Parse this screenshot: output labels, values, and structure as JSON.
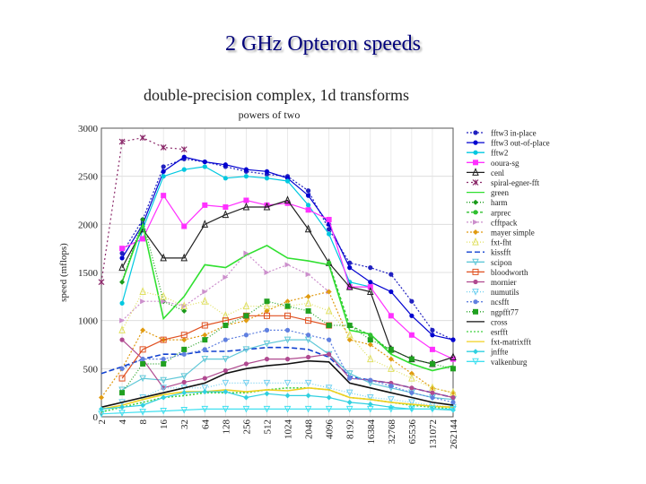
{
  "slide": {
    "title": "2 GHz Opteron speeds"
  },
  "chart_data": {
    "type": "line",
    "title": "double-precision complex, 1d transforms",
    "subtitle": "powers of two",
    "ylabel": "speed (mflops)",
    "xlabel": "",
    "ylim": [
      0,
      3000
    ],
    "yticks": [
      0,
      500,
      1000,
      1500,
      2000,
      2500,
      3000
    ],
    "grid": true,
    "legend_position": "right",
    "categories": [
      "2",
      "4",
      "8",
      "16",
      "32",
      "64",
      "128",
      "256",
      "512",
      "1024",
      "2048",
      "4096",
      "8192",
      "16384",
      "32768",
      "65536",
      "131072",
      "262144"
    ],
    "series": [
      {
        "name": "fftw3 in-place",
        "color": "#2020c0",
        "marker": "dot",
        "dash": "2,2",
        "values": [
          null,
          1700,
          2050,
          2600,
          2680,
          2650,
          2600,
          2550,
          2520,
          2500,
          2350,
          1950,
          1600,
          1550,
          1480,
          1200,
          900,
          800
        ]
      },
      {
        "name": "fftw3 out-of-place",
        "color": "#0000d0",
        "marker": "circle",
        "dash": "",
        "values": [
          null,
          1650,
          2000,
          2550,
          2700,
          2650,
          2620,
          2570,
          2550,
          2480,
          2300,
          2000,
          1550,
          1400,
          1300,
          1050,
          850,
          800
        ]
      },
      {
        "name": "fftw2",
        "color": "#00c8e0",
        "marker": "circle",
        "dash": "",
        "values": [
          null,
          1180,
          1950,
          2500,
          2570,
          2600,
          2480,
          2500,
          2480,
          2450,
          2200,
          1900,
          1400,
          1350,
          null,
          null,
          null,
          null
        ]
      },
      {
        "name": "ooura-sg",
        "color": "#ff30ff",
        "marker": "square",
        "dash": "",
        "values": [
          null,
          1750,
          1850,
          2300,
          1980,
          2200,
          2180,
          2250,
          2200,
          2220,
          2150,
          2050,
          1350,
          1350,
          1050,
          850,
          700,
          600
        ]
      },
      {
        "name": "cenl",
        "color": "#202020",
        "marker": "triangle",
        "dash": "",
        "values": [
          null,
          1550,
          1950,
          1650,
          1650,
          2000,
          2100,
          2180,
          2180,
          2250,
          1950,
          1600,
          1350,
          1300,
          700,
          600,
          550,
          620
        ]
      },
      {
        "name": "spiral-egner-fft",
        "color": "#8b2a6a",
        "marker": "star",
        "dash": "2,3",
        "values": [
          1400,
          2860,
          2900,
          2800,
          2780,
          null,
          null,
          null,
          null,
          null,
          null,
          null,
          null,
          null,
          null,
          null,
          null,
          null
        ]
      },
      {
        "name": "green",
        "color": "#30e030",
        "marker": "none",
        "dash": "",
        "values": [
          null,
          1400,
          2000,
          1020,
          1250,
          1580,
          1550,
          1680,
          1780,
          1650,
          1620,
          1580,
          900,
          860,
          650,
          550,
          480,
          530
        ]
      },
      {
        "name": "harm",
        "color": "#1a9a1a",
        "marker": "diamond",
        "dash": "1,2",
        "values": [
          null,
          1400,
          2050,
          1200,
          1100,
          null,
          null,
          null,
          null,
          null,
          null,
          null,
          null,
          null,
          null,
          null,
          null,
          null
        ]
      },
      {
        "name": "arprec",
        "color": "#30c030",
        "marker": "circle",
        "dash": "3,2",
        "values": [
          null,
          null,
          null,
          null,
          null,
          null,
          null,
          null,
          null,
          null,
          null,
          1600,
          950,
          850,
          680,
          null,
          null,
          null
        ]
      },
      {
        "name": "cfftpack",
        "color": "#cc8fcc",
        "marker": "tri-right",
        "dash": "2,2",
        "values": [
          null,
          1000,
          1200,
          1200,
          1150,
          1300,
          1450,
          1700,
          1500,
          1580,
          1480,
          1300,
          null,
          null,
          null,
          null,
          null,
          null
        ]
      },
      {
        "name": "mayer simple",
        "color": "#e09a10",
        "marker": "diamond",
        "dash": "2,2",
        "values": [
          200,
          500,
          900,
          800,
          800,
          850,
          950,
          1000,
          1100,
          1200,
          1250,
          1300,
          800,
          750,
          600,
          450,
          300,
          250
        ]
      },
      {
        "name": "fxt-fht",
        "color": "#e0e060",
        "marker": "triangle",
        "dash": "1,2",
        "values": [
          null,
          900,
          1300,
          1250,
          1150,
          1200,
          1050,
          1150,
          1150,
          1150,
          1180,
          1100,
          850,
          600,
          500,
          400,
          300,
          250
        ]
      },
      {
        "name": "kissfft",
        "color": "#1040d0",
        "marker": "none",
        "dash": "6,3",
        "values": [
          450,
          520,
          600,
          650,
          650,
          680,
          680,
          700,
          720,
          720,
          700,
          620,
          420,
          380,
          350,
          300,
          250,
          200
        ]
      },
      {
        "name": "scipon",
        "color": "#60c8d8",
        "marker": "tri-down",
        "dash": "",
        "values": [
          null,
          280,
          400,
          380,
          420,
          600,
          600,
          700,
          760,
          800,
          800,
          650,
          450,
          350,
          300,
          250,
          200,
          180
        ]
      },
      {
        "name": "bloodworth",
        "color": "#e05020",
        "marker": "open-square",
        "dash": "",
        "values": [
          null,
          400,
          700,
          800,
          850,
          950,
          1000,
          1050,
          1050,
          1050,
          1000,
          950,
          null,
          null,
          null,
          null,
          null,
          null
        ]
      },
      {
        "name": "mornier",
        "color": "#b04a90",
        "marker": "circle",
        "dash": "",
        "values": [
          null,
          800,
          600,
          300,
          360,
          400,
          480,
          550,
          600,
          600,
          620,
          650,
          400,
          380,
          350,
          300,
          250,
          200
        ]
      },
      {
        "name": "numutils",
        "color": "#70d0f0",
        "marker": "tri-down",
        "dash": "1,2",
        "values": [
          null,
          150,
          200,
          300,
          300,
          300,
          350,
          350,
          350,
          350,
          350,
          300,
          250,
          200,
          180,
          150,
          120,
          100
        ]
      },
      {
        "name": "ncsfft",
        "color": "#6080e0",
        "marker": "circle",
        "dash": "2,2",
        "values": [
          null,
          500,
          600,
          600,
          650,
          700,
          800,
          850,
          900,
          900,
          850,
          800,
          400,
          380,
          320,
          250,
          200,
          150
        ]
      },
      {
        "name": "ngpfft77",
        "color": "#20a020",
        "marker": "square",
        "dash": "1,2",
        "values": [
          null,
          250,
          550,
          550,
          700,
          800,
          950,
          1050,
          1200,
          1150,
          1100,
          950,
          950,
          800,
          700,
          600,
          550,
          500
        ]
      },
      {
        "name": "cross",
        "color": "#101010",
        "marker": "none",
        "dash": "",
        "values": [
          100,
          150,
          200,
          250,
          300,
          350,
          450,
          500,
          530,
          550,
          580,
          570,
          350,
          300,
          250,
          200,
          150,
          120
        ]
      },
      {
        "name": "esrfft",
        "color": "#40d040",
        "marker": "none",
        "dash": "2,2",
        "values": [
          50,
          100,
          150,
          200,
          220,
          250,
          250,
          250,
          280,
          300,
          300,
          280,
          200,
          180,
          150,
          120,
          100,
          80
        ]
      },
      {
        "name": "fxt-matrixfft",
        "color": "#f0d020",
        "marker": "none",
        "dash": "",
        "values": [
          80,
          120,
          180,
          230,
          260,
          260,
          280,
          260,
          280,
          270,
          300,
          280,
          200,
          180,
          150,
          130,
          110,
          100
        ]
      },
      {
        "name": "jnffte",
        "color": "#30d0e0",
        "marker": "diamond",
        "dash": "",
        "values": [
          80,
          100,
          120,
          200,
          250,
          260,
          260,
          200,
          240,
          220,
          220,
          200,
          150,
          130,
          100,
          80,
          80,
          70
        ]
      },
      {
        "name": "valkenburg",
        "color": "#40e0f0",
        "marker": "tri-down",
        "dash": "",
        "values": [
          30,
          40,
          50,
          60,
          70,
          80,
          80,
          80,
          80,
          80,
          80,
          80,
          80,
          80,
          80,
          80,
          80,
          80
        ]
      }
    ]
  }
}
